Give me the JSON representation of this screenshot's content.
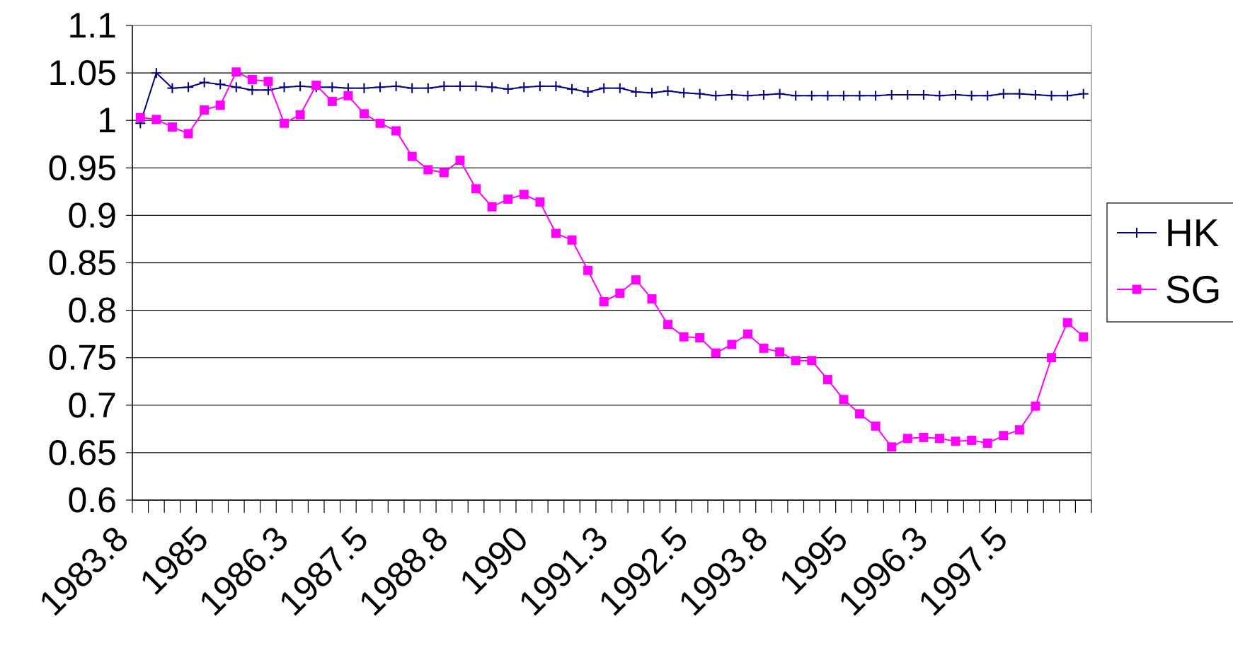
{
  "chart_data": {
    "type": "line",
    "categories": [
      "1983.8",
      null,
      null,
      null,
      null,
      "1985",
      null,
      null,
      null,
      null,
      "1986.3",
      null,
      null,
      null,
      null,
      "1987.5",
      null,
      null,
      null,
      null,
      "1988.8",
      null,
      null,
      null,
      null,
      "1990",
      null,
      null,
      null,
      null,
      "1991.3",
      null,
      null,
      null,
      null,
      "1992.5",
      null,
      null,
      null,
      null,
      "1993.8",
      null,
      null,
      null,
      null,
      "1995",
      null,
      null,
      null,
      null,
      "1996.3",
      null,
      null,
      null,
      null,
      "1997.5",
      null,
      null,
      null,
      null
    ],
    "series": [
      {
        "name": "HK",
        "color": "#000080",
        "marker": "plus",
        "values": [
          0.997,
          1.05,
          1.034,
          1.035,
          1.04,
          1.038,
          1.035,
          1.032,
          1.032,
          1.035,
          1.036,
          1.035,
          1.035,
          1.034,
          1.034,
          1.035,
          1.036,
          1.034,
          1.034,
          1.036,
          1.036,
          1.036,
          1.035,
          1.033,
          1.035,
          1.036,
          1.036,
          1.033,
          1.03,
          1.034,
          1.034,
          1.03,
          1.029,
          1.031,
          1.029,
          1.028,
          1.026,
          1.027,
          1.026,
          1.027,
          1.028,
          1.026,
          1.026,
          1.026,
          1.026,
          1.026,
          1.026,
          1.027,
          1.027,
          1.027,
          1.026,
          1.027,
          1.026,
          1.026,
          1.028,
          1.028,
          1.027,
          1.026,
          1.026,
          1.028
        ]
      },
      {
        "name": "SG",
        "color": "#ff00ff",
        "marker": "square",
        "values": [
          1.003,
          1.001,
          0.993,
          0.986,
          1.011,
          1.016,
          1.051,
          1.043,
          1.041,
          0.997,
          1.006,
          1.037,
          1.02,
          1.026,
          1.007,
          0.997,
          0.989,
          0.962,
          0.948,
          0.945,
          0.958,
          0.928,
          0.909,
          0.917,
          0.922,
          0.914,
          0.881,
          0.874,
          0.842,
          0.809,
          0.818,
          0.832,
          0.812,
          0.785,
          0.772,
          0.771,
          0.755,
          0.764,
          0.775,
          0.76,
          0.756,
          0.747,
          0.747,
          0.727,
          0.706,
          0.691,
          0.678,
          0.656,
          0.665,
          0.666,
          0.665,
          0.662,
          0.663,
          0.66,
          0.668,
          0.674,
          0.699,
          0.75,
          0.787,
          0.772
        ]
      }
    ],
    "ylim": [
      0.6,
      1.1
    ],
    "yticks": [
      0.6,
      0.65,
      0.7,
      0.75,
      0.8,
      0.85,
      0.9,
      0.95,
      1,
      1.05,
      1.1
    ],
    "grid": true,
    "legend": "right"
  }
}
